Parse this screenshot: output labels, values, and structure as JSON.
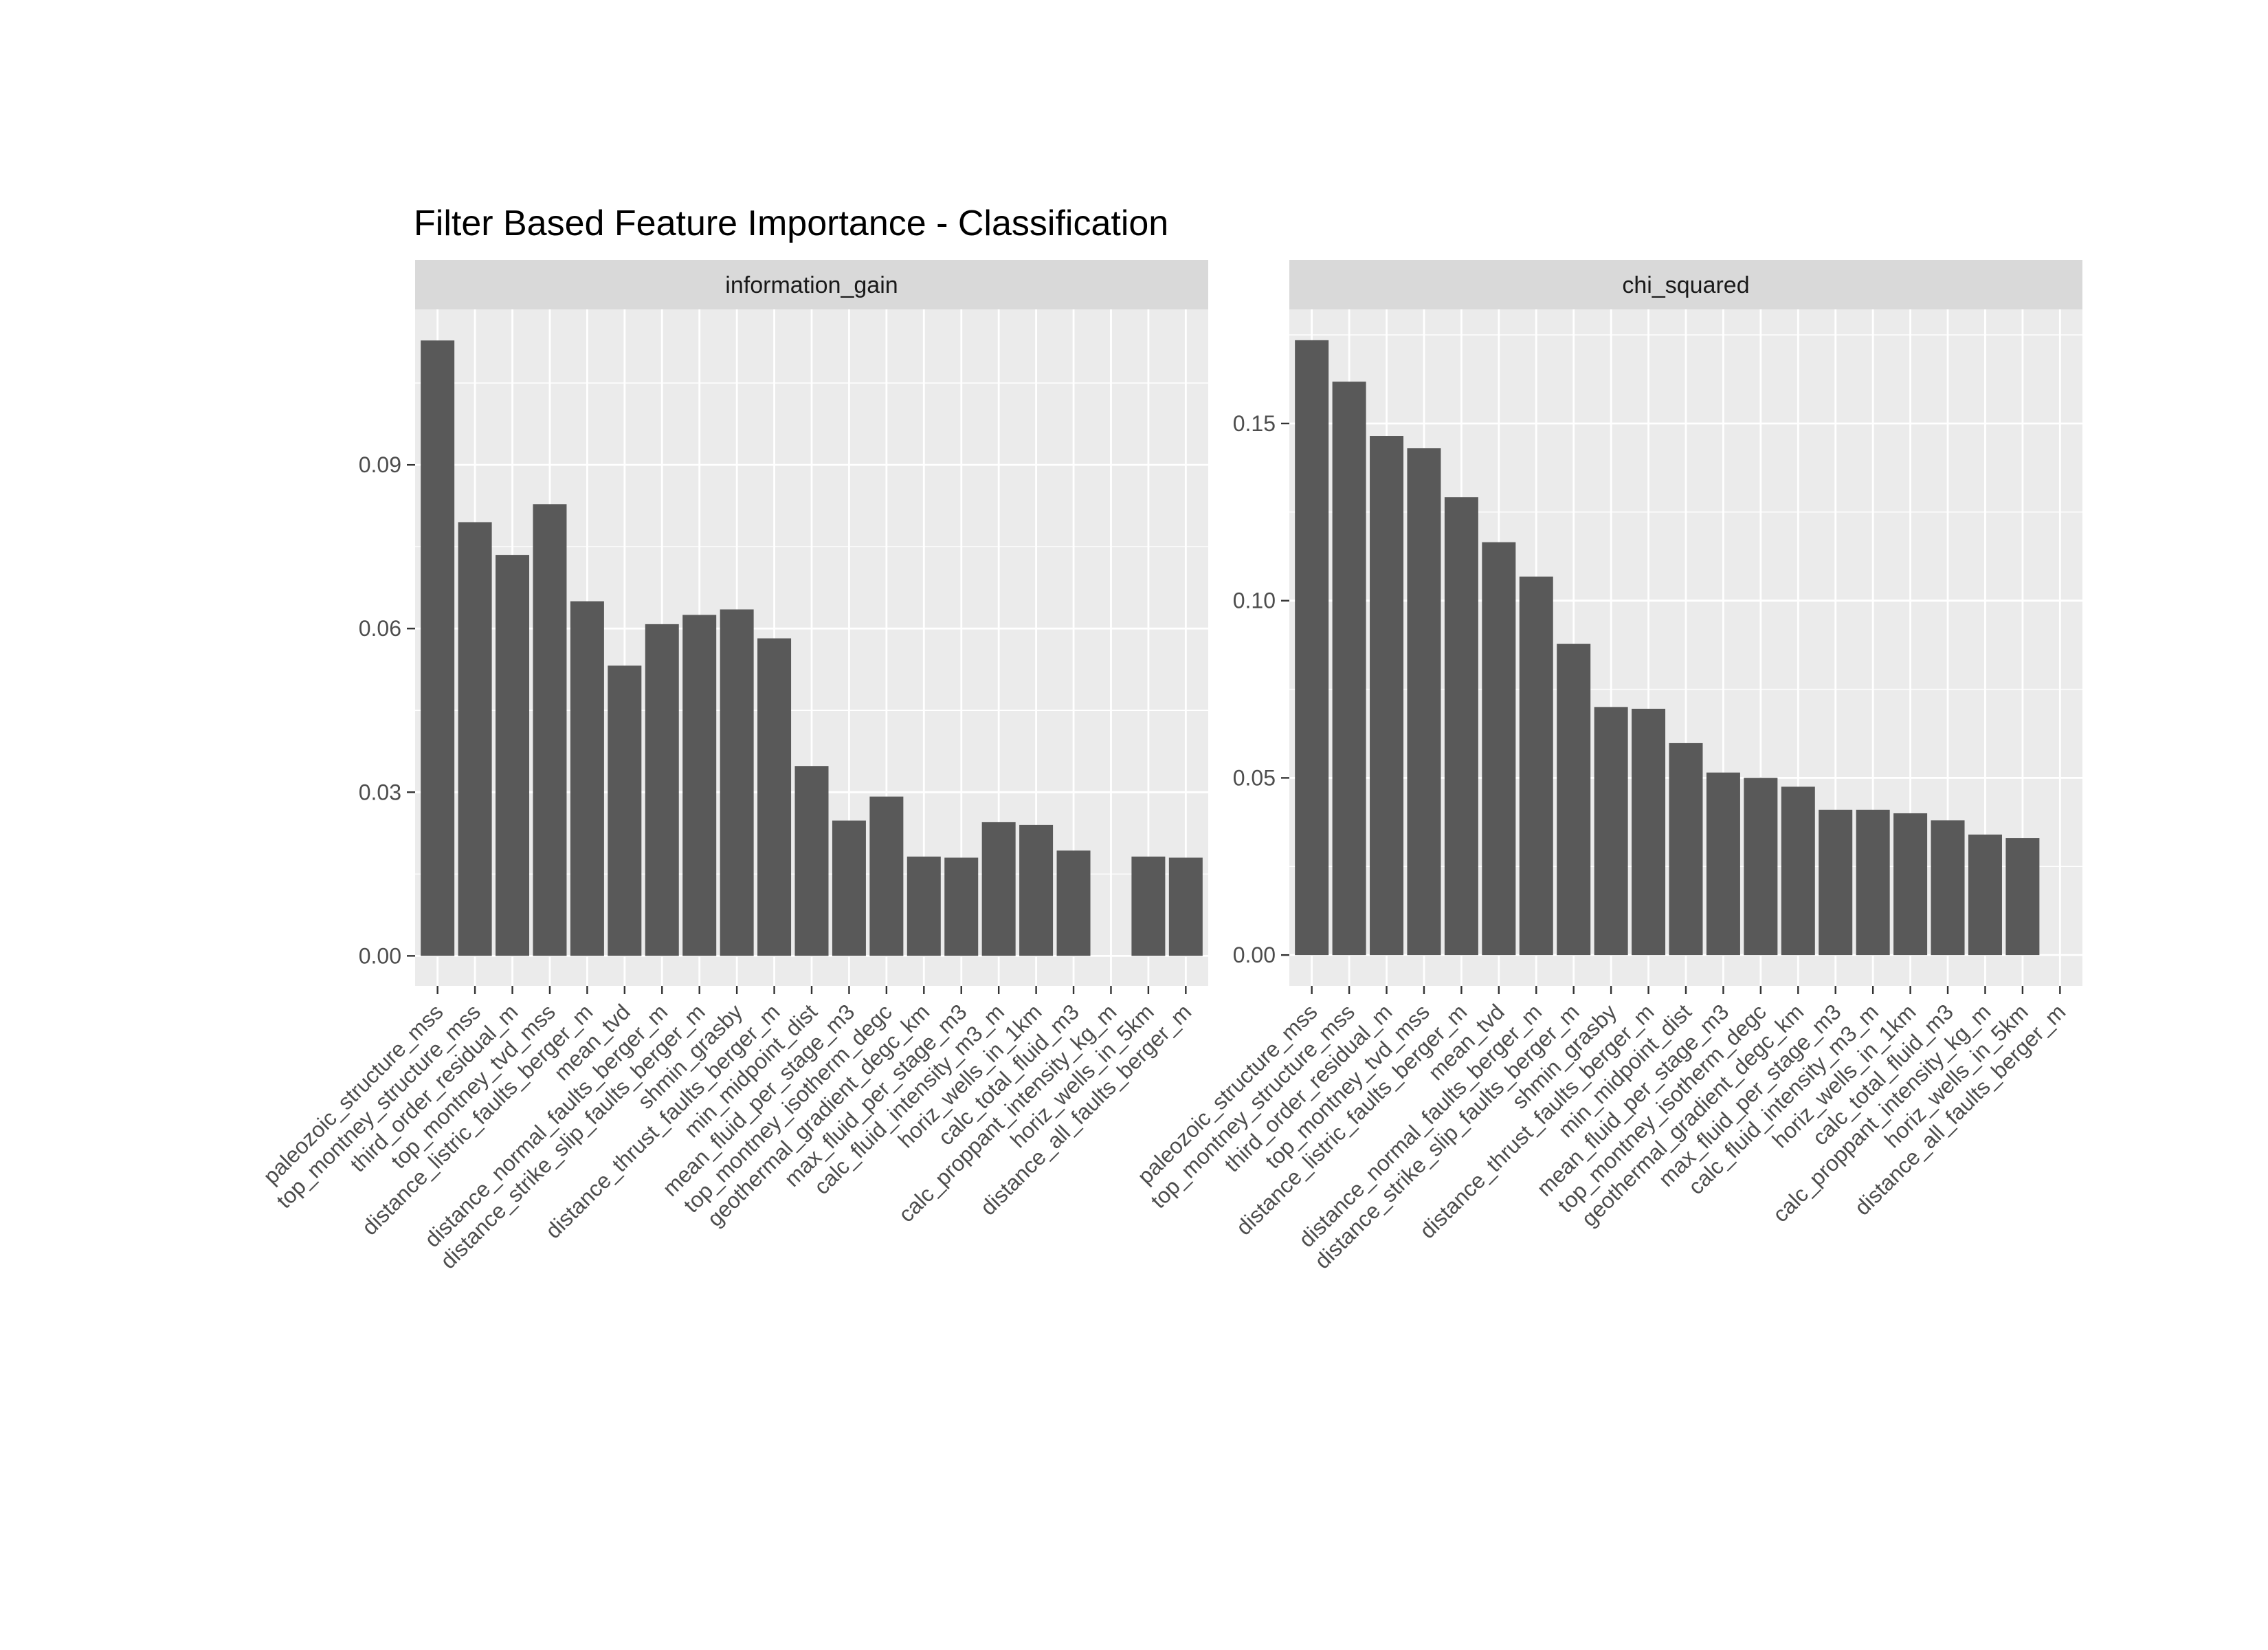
{
  "chart_data": {
    "type": "bar",
    "title": "Filter Based Feature Importance - Classification",
    "categories": [
      "paleozoic_structure_mss",
      "top_montney_structure_mss",
      "third_order_residual_m",
      "top_montney_tvd_mss",
      "distance_listric_faults_berger_m",
      "mean_tvd",
      "distance_normal_faults_berger_m",
      "distance_strike_slip_faults_berger_m",
      "shmin_grasby",
      "distance_thrust_faults_berger_m",
      "min_midpoint_dist",
      "mean_fluid_per_stage_m3",
      "top_montney_isotherm_degc",
      "geothermal_gradient_degc_km",
      "max_fluid_per_stage_m3",
      "calc_fluid_intensity_m3_m",
      "horiz_wells_in_1km",
      "calc_total_fluid_m3",
      "calc_proppant_intensity_kg_m",
      "horiz_wells_in_5km",
      "distance_all_faults_berger_m"
    ],
    "facets": [
      {
        "name": "information_gain",
        "yticks": [
          0.0,
          0.03,
          0.06,
          0.09
        ],
        "ytick_labels": [
          "0.00",
          "0.03",
          "0.06",
          "0.09"
        ],
        "ylim": [
          -0.0055,
          0.1185
        ],
        "values": [
          0.1128,
          0.0795,
          0.0735,
          0.0828,
          0.065,
          0.0532,
          0.0608,
          0.0625,
          0.0635,
          0.0582,
          0.0348,
          0.0248,
          0.0292,
          0.0182,
          0.018,
          0.0245,
          0.024,
          0.0193,
          0.0,
          0.0182,
          0.018
        ]
      },
      {
        "name": "chi_squared",
        "yticks": [
          0.0,
          0.05,
          0.1,
          0.15
        ],
        "ytick_labels": [
          "0.00",
          "0.05",
          "0.10",
          "0.15"
        ],
        "ylim": [
          -0.0087,
          0.1822
        ],
        "values": [
          0.1735,
          0.1618,
          0.1465,
          0.143,
          0.1292,
          0.1165,
          0.1068,
          0.0878,
          0.07,
          0.0695,
          0.0598,
          0.0515,
          0.05,
          0.0475,
          0.041,
          0.041,
          0.04,
          0.038,
          0.034,
          0.033,
          0.0
        ]
      }
    ],
    "xlabel": "",
    "ylabel": "",
    "grid": true,
    "legend": "none",
    "colors": {
      "bar": "#595959",
      "panel": "#ebebeb",
      "strip": "#d9d9d9",
      "grid_major": "#ffffff",
      "axis_text": "#4d4d4d",
      "tick": "#333333"
    }
  }
}
